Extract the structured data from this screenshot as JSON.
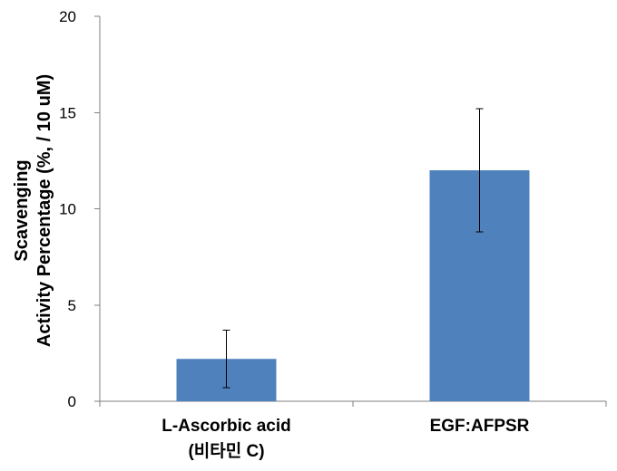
{
  "chart_data": {
    "type": "bar",
    "categories": [
      [
        "L-Ascorbic acid",
        "(비타민 C)"
      ],
      [
        "EGF:AFPSR"
      ]
    ],
    "values": [
      2.2,
      12.0
    ],
    "error": [
      1.5,
      3.2
    ],
    "yticks": [
      0,
      5,
      10,
      15,
      20
    ],
    "ylim": [
      0,
      20
    ],
    "ylabel": [
      "Scavenging",
      "Activity Percentage (%,  / 10 uM)"
    ],
    "xlabel": "",
    "title": "",
    "grid": false,
    "bar_color": "#4f81bd",
    "axis_color": "#7f7f7f"
  }
}
